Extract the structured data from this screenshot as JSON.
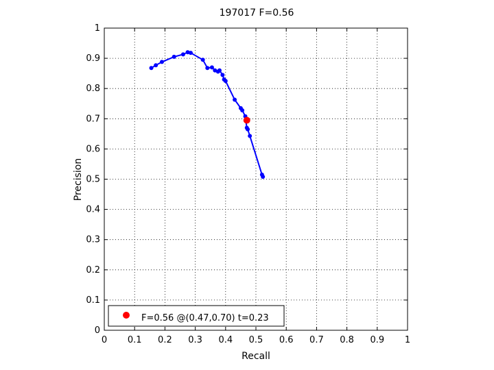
{
  "chart_data": {
    "type": "line",
    "title": "197017 F=0.56",
    "xlabel": "Recall",
    "ylabel": "Precision",
    "xlim": [
      0,
      1
    ],
    "ylim": [
      0,
      1
    ],
    "xticks": [
      "0",
      "0.1",
      "0.2",
      "0.3",
      "0.4",
      "0.5",
      "0.6",
      "0.7",
      "0.8",
      "0.9",
      "1"
    ],
    "yticks": [
      "0",
      "0.1",
      "0.2",
      "0.3",
      "0.4",
      "0.5",
      "0.6",
      "0.7",
      "0.8",
      "0.9",
      "1"
    ],
    "grid": true,
    "series": [
      {
        "color": "#0000ff",
        "marker": "dot",
        "points": [
          [
            0.155,
            0.868
          ],
          [
            0.17,
            0.877
          ],
          [
            0.19,
            0.888
          ],
          [
            0.23,
            0.905
          ],
          [
            0.26,
            0.913
          ],
          [
            0.275,
            0.92
          ],
          [
            0.285,
            0.918
          ],
          [
            0.325,
            0.895
          ],
          [
            0.34,
            0.868
          ],
          [
            0.355,
            0.87
          ],
          [
            0.365,
            0.86
          ],
          [
            0.375,
            0.856
          ],
          [
            0.38,
            0.86
          ],
          [
            0.39,
            0.845
          ],
          [
            0.395,
            0.83
          ],
          [
            0.4,
            0.825
          ],
          [
            0.43,
            0.763
          ],
          [
            0.45,
            0.735
          ],
          [
            0.455,
            0.728
          ],
          [
            0.465,
            0.708
          ],
          [
            0.47,
            0.67
          ],
          [
            0.473,
            0.665
          ],
          [
            0.48,
            0.643
          ],
          [
            0.52,
            0.515
          ],
          [
            0.523,
            0.508
          ]
        ]
      }
    ],
    "best_point": {
      "x": 0.47,
      "y": 0.695,
      "color": "#ff0000"
    },
    "legend": {
      "position": "bottom-left",
      "text": "F=0.56 @(0.47,0.70) t=0.23"
    }
  }
}
